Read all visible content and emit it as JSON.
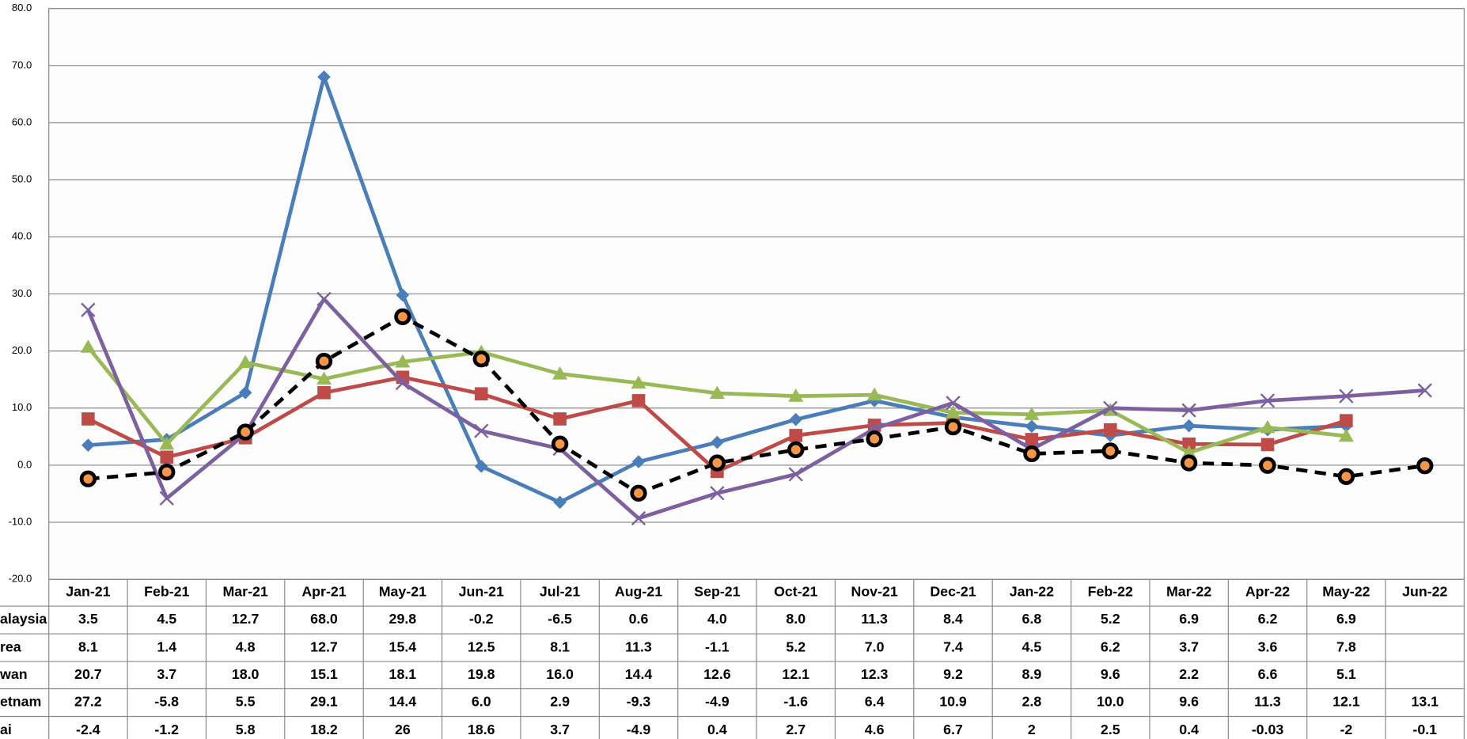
{
  "chart_data": {
    "type": "line",
    "categories": [
      "Jan-21",
      "Feb-21",
      "Mar-21",
      "Apr-21",
      "May-21",
      "Jun-21",
      "Jul-21",
      "Aug-21",
      "Sep-21",
      "Oct-21",
      "Nov-21",
      "Dec-21",
      "Jan-22",
      "Feb-22",
      "Mar-22",
      "Apr-22",
      "May-22",
      "Jun-22"
    ],
    "ylim": [
      -20,
      80
    ],
    "yticks": [
      {
        "value": -20,
        "label": "-20.0"
      },
      {
        "value": -10,
        "label": "-10.0"
      },
      {
        "value": 0,
        "label": "0.0"
      },
      {
        "value": 10,
        "label": "10.0"
      },
      {
        "value": 20,
        "label": "20.0"
      },
      {
        "value": 30,
        "label": "30.0"
      },
      {
        "value": 40,
        "label": "40.0"
      },
      {
        "value": 50,
        "label": "50.0"
      },
      {
        "value": 60,
        "label": "60.0"
      },
      {
        "value": 70,
        "label": "70.0"
      },
      {
        "value": 80,
        "label": "80.0"
      }
    ],
    "grid": true,
    "series": [
      {
        "name": "alaysia",
        "color": "#4a7ebb",
        "marker": "diamond",
        "values": [
          3.5,
          4.5,
          12.7,
          68.0,
          29.8,
          -0.2,
          -6.5,
          0.6,
          4.0,
          8.0,
          11.3,
          8.4,
          6.8,
          5.2,
          6.9,
          6.2,
          6.9,
          null
        ],
        "value_labels": [
          "3.5",
          "4.5",
          "12.7",
          "68.0",
          "29.8",
          "-0.2",
          "-6.5",
          "0.6",
          "4.0",
          "8.0",
          "11.3",
          "8.4",
          "6.8",
          "5.2",
          "6.9",
          "6.2",
          "6.9",
          null
        ]
      },
      {
        "name": "rea",
        "color": "#be4b48",
        "marker": "square",
        "values": [
          8.1,
          1.4,
          4.8,
          12.7,
          15.4,
          12.5,
          8.1,
          11.3,
          -1.1,
          5.2,
          7.0,
          7.4,
          4.5,
          6.2,
          3.7,
          3.6,
          7.8,
          null
        ],
        "value_labels": [
          "8.1",
          "1.4",
          "4.8",
          "12.7",
          "15.4",
          "12.5",
          "8.1",
          "11.3",
          "-1.1",
          "5.2",
          "7.0",
          "7.4",
          "4.5",
          "6.2",
          "3.7",
          "3.6",
          "7.8",
          null
        ]
      },
      {
        "name": "wan",
        "color": "#98b954",
        "marker": "triangle",
        "values": [
          20.7,
          3.7,
          18.0,
          15.1,
          18.1,
          19.8,
          16.0,
          14.4,
          12.6,
          12.1,
          12.3,
          9.2,
          8.9,
          9.6,
          2.2,
          6.6,
          5.1,
          null
        ],
        "value_labels": [
          "20.7",
          "3.7",
          "18.0",
          "15.1",
          "18.1",
          "19.8",
          "16.0",
          "14.4",
          "12.6",
          "12.1",
          "12.3",
          "9.2",
          "8.9",
          "9.6",
          "2.2",
          "6.6",
          "5.1",
          null
        ]
      },
      {
        "name": "etnam",
        "color": "#7d60a0",
        "marker": "x",
        "values": [
          27.2,
          -5.8,
          5.5,
          29.1,
          14.4,
          6.0,
          2.9,
          -9.3,
          -4.9,
          -1.6,
          6.4,
          10.9,
          2.8,
          10.0,
          9.6,
          11.3,
          12.1,
          13.1
        ],
        "value_labels": [
          "27.2",
          "-5.8",
          "5.5",
          "29.1",
          "14.4",
          "6.0",
          "2.9",
          "-9.3",
          "-4.9",
          "-1.6",
          "6.4",
          "10.9",
          "2.8",
          "10.0",
          "9.6",
          "11.3",
          "12.1",
          "13.1"
        ]
      },
      {
        "name": "ai",
        "color": "#000000",
        "marker": "circle",
        "marker_color": "#f79646",
        "dashed": true,
        "values": [
          -2.4,
          -1.2,
          5.8,
          18.2,
          26,
          18.6,
          3.7,
          -4.9,
          0.4,
          2.7,
          4.6,
          6.7,
          2,
          2.5,
          0.4,
          -0.03,
          -2,
          -0.1
        ],
        "value_labels": [
          "-2.4",
          "-1.2",
          "5.8",
          "18.2",
          "26",
          "18.6",
          "3.7",
          "-4.9",
          "0.4",
          "2.7",
          "4.6",
          "6.7",
          "2",
          "2.5",
          "0.4",
          "-0.03",
          "-2",
          "-0.1"
        ]
      }
    ]
  }
}
